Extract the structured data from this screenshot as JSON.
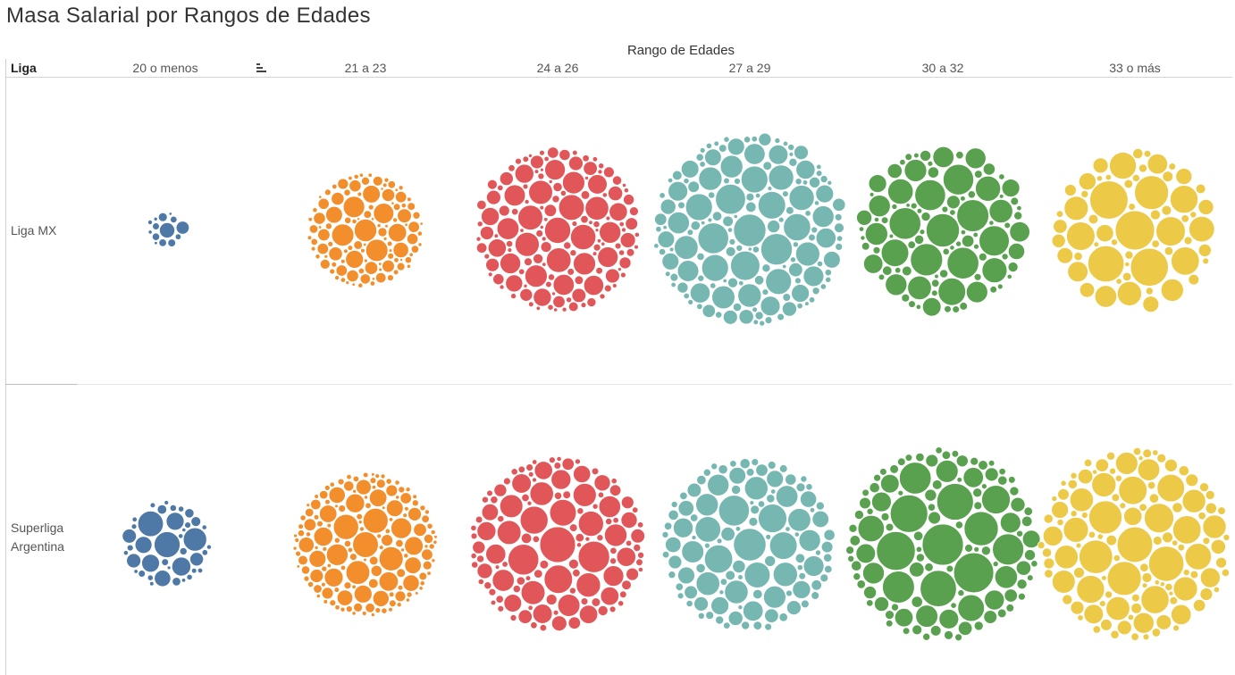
{
  "title": "Masa Salarial por Rangos de Edades",
  "chart_data": {
    "type": "packed-bubble",
    "title": "Masa Salarial por Rangos de Edades",
    "column_header_title": "Rango de Edades",
    "row_header_title": "Liga",
    "columns": [
      "20 o menos",
      "21 a 23",
      "24 a 26",
      "27 a 29",
      "30 a 32",
      "33 o más"
    ],
    "colors": {
      "20 o menos": "#4e79a7",
      "21 a 23": "#f28e2b",
      "24 a 26": "#e15759",
      "27 a 29": "#76b7b2",
      "30 a 32": "#59a14f",
      "33 o más": "#edc948"
    },
    "rows": [
      {
        "league": "Liga MX",
        "groups": [
          {
            "age_range": "20 o menos",
            "bubble_count": 14
          },
          {
            "age_range": "21 a 23",
            "bubble_count": 110
          },
          {
            "age_range": "24 a 26",
            "bubble_count": 140
          },
          {
            "age_range": "27 a 29",
            "bubble_count": 150
          },
          {
            "age_range": "30 a 32",
            "bubble_count": 95
          },
          {
            "age_range": "33 o más",
            "bubble_count": 60
          }
        ]
      },
      {
        "league": "Superliga Argentina",
        "groups": [
          {
            "age_range": "20 o menos",
            "bubble_count": 40
          },
          {
            "age_range": "21 a 23",
            "bubble_count": 150
          },
          {
            "age_range": "24 a 26",
            "bubble_count": 120
          },
          {
            "age_range": "27 a 29",
            "bubble_count": 110
          },
          {
            "age_range": "30 a 32",
            "bubble_count": 110
          },
          {
            "age_range": "33 o más",
            "bubble_count": 115
          }
        ]
      }
    ]
  }
}
